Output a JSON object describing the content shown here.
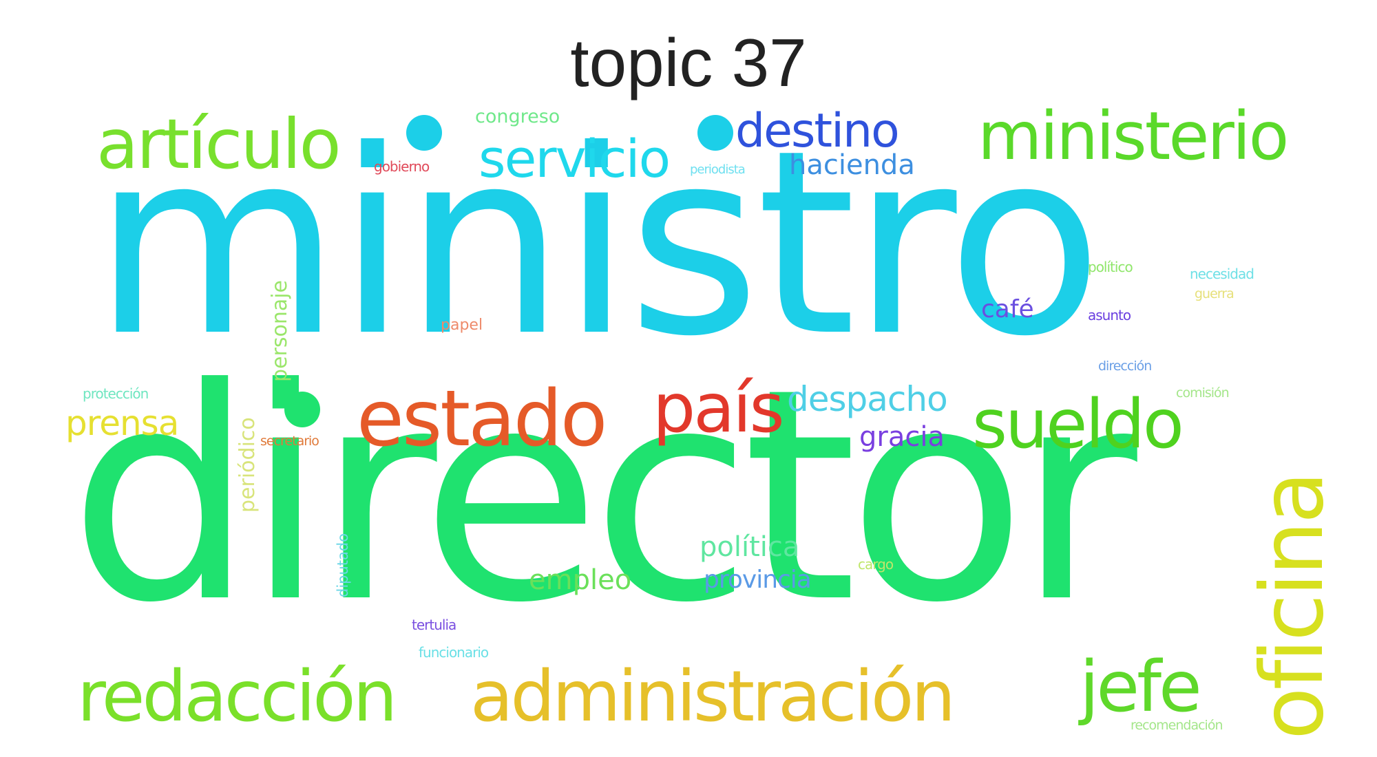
{
  "title": "topic 37",
  "words": [
    {
      "text": "ministro",
      "color": "#1ccfe8"
    },
    {
      "text": "director",
      "color": "#1fe26f"
    },
    {
      "text": "artículo",
      "color": "#78e02d"
    },
    {
      "text": "ministerio",
      "color": "#5ad92a"
    },
    {
      "text": "servicio",
      "color": "#1fd8ec"
    },
    {
      "text": "destino",
      "color": "#2f52dc"
    },
    {
      "text": "hacienda",
      "color": "#3d8fe0"
    },
    {
      "text": "congreso",
      "color": "#6fe88a"
    },
    {
      "text": "gobierno",
      "color": "#e04a5a"
    },
    {
      "text": "periodista",
      "color": "#6fe0f0"
    },
    {
      "text": "estado",
      "color": "#e55a28"
    },
    {
      "text": "país",
      "color": "#e2382b"
    },
    {
      "text": "despacho",
      "color": "#4fcfe6"
    },
    {
      "text": "gracia",
      "color": "#7a3fe0"
    },
    {
      "text": "sueldo",
      "color": "#4fd21f"
    },
    {
      "text": "oficina",
      "color": "#d7e01f"
    },
    {
      "text": "prensa",
      "color": "#e6e031"
    },
    {
      "text": "protección",
      "color": "#6fe6c0"
    },
    {
      "text": "personaje",
      "color": "#9ae66a"
    },
    {
      "text": "periódico",
      "color": "#d8e47a"
    },
    {
      "text": "secretario",
      "color": "#e07a3a"
    },
    {
      "text": "papel",
      "color": "#ee8a6a"
    },
    {
      "text": "café",
      "color": "#6a4fe0"
    },
    {
      "text": "asunto",
      "color": "#6a3fe0"
    },
    {
      "text": "político",
      "color": "#8fe66a"
    },
    {
      "text": "necesidad",
      "color": "#6fe0e6"
    },
    {
      "text": "guerra",
      "color": "#e6e07a"
    },
    {
      "text": "dirección",
      "color": "#6a9fe6"
    },
    {
      "text": "comisión",
      "color": "#a4e68a"
    },
    {
      "text": "política",
      "color": "#5fe6a0"
    },
    {
      "text": "provincia",
      "color": "#5a9ae6"
    },
    {
      "text": "empleo",
      "color": "#6ae05a"
    },
    {
      "text": "cargo",
      "color": "#bfe66a"
    },
    {
      "text": "diputado",
      "color": "#6ad6e6"
    },
    {
      "text": "tertulia",
      "color": "#7a4fe0"
    },
    {
      "text": "funcionario",
      "color": "#6ae0e6"
    },
    {
      "text": "redacción",
      "color": "#7ae02a"
    },
    {
      "text": "administración",
      "color": "#e6c02a"
    },
    {
      "text": "jefe",
      "color": "#5fd82a"
    },
    {
      "text": "recomendación",
      "color": "#a4e68a"
    }
  ],
  "dot_colors": [
    "#1ccfe8",
    "#1ccfe8",
    "#1fe26f"
  ]
}
